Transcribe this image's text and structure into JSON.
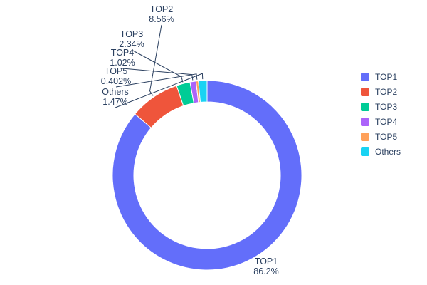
{
  "chart_data": {
    "type": "pie",
    "subtype": "donut",
    "hole": 0.77,
    "title": "",
    "labels": [
      "TOP1",
      "TOP2",
      "TOP3",
      "TOP4",
      "TOP5",
      "Others"
    ],
    "values": [
      86.2,
      8.56,
      2.34,
      1.02,
      0.402,
      1.47
    ],
    "percent_labels": [
      "86.2%",
      "8.56%",
      "2.34%",
      "1.02%",
      "0.402%",
      "1.47%"
    ],
    "colors": [
      "#636efa",
      "#ef553b",
      "#00cc96",
      "#ab63fa",
      "#ffa15a",
      "#19d3f3"
    ],
    "legend": {
      "position": "right",
      "entries": [
        "TOP1",
        "TOP2",
        "TOP3",
        "TOP4",
        "TOP5",
        "Others"
      ]
    },
    "start_angle_deg": 0,
    "direction": "clockwise",
    "background": "#ffffff",
    "text_color": "#2a3f5f"
  }
}
